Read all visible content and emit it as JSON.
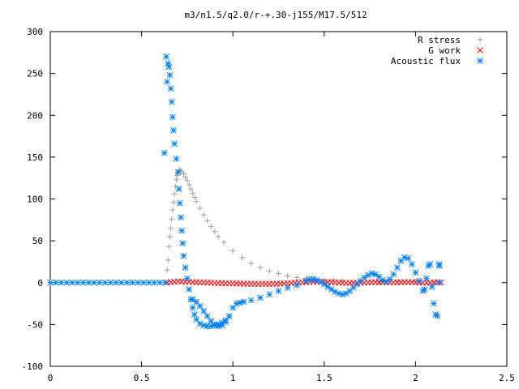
{
  "chart_data": {
    "type": "scatter",
    "title": "m3/n1.5/q2.0/r-+.30-j155/M17.5/512",
    "xlabel": "",
    "ylabel": "",
    "xlim": [
      0,
      2.5
    ],
    "ylim": [
      -100,
      300
    ],
    "xticks": [
      "0",
      "0.5",
      "1",
      "1.5",
      "2",
      "2.5"
    ],
    "yticks": [
      "-100",
      "-50",
      "0",
      "50",
      "100",
      "150",
      "200",
      "250",
      "300"
    ],
    "grid": false,
    "legend_position": "top-right",
    "series": [
      {
        "name": "R stress",
        "marker": "plus",
        "color": "#a0a0a0",
        "points": [
          [
            0.64,
            15
          ],
          [
            0.645,
            27
          ],
          [
            0.65,
            43
          ],
          [
            0.655,
            55
          ],
          [
            0.66,
            65
          ],
          [
            0.665,
            76
          ],
          [
            0.67,
            87
          ],
          [
            0.675,
            96
          ],
          [
            0.68,
            106
          ],
          [
            0.685,
            115
          ],
          [
            0.69,
            123
          ],
          [
            0.695,
            128
          ],
          [
            0.7,
            132
          ],
          [
            0.705,
            134
          ],
          [
            0.71,
            135
          ],
          [
            0.72,
            133
          ],
          [
            0.73,
            130
          ],
          [
            0.74,
            126
          ],
          [
            0.75,
            122
          ],
          [
            0.76,
            117
          ],
          [
            0.77,
            112
          ],
          [
            0.78,
            107
          ],
          [
            0.79,
            102
          ],
          [
            0.8,
            97
          ],
          [
            0.82,
            89
          ],
          [
            0.84,
            81
          ],
          [
            0.86,
            74
          ],
          [
            0.88,
            67
          ],
          [
            0.9,
            61
          ],
          [
            0.92,
            55
          ],
          [
            0.95,
            48
          ],
          [
            1.0,
            38
          ],
          [
            1.05,
            30
          ],
          [
            1.1,
            23
          ],
          [
            1.15,
            18
          ],
          [
            1.2,
            14
          ],
          [
            1.25,
            11
          ],
          [
            1.3,
            8
          ],
          [
            1.35,
            6
          ],
          [
            1.4,
            5
          ],
          [
            1.45,
            4
          ],
          [
            1.5,
            3
          ],
          [
            1.55,
            3
          ],
          [
            1.6,
            2
          ],
          [
            1.7,
            2
          ],
          [
            1.8,
            1
          ],
          [
            1.9,
            1
          ],
          [
            2.0,
            1
          ],
          [
            2.1,
            0.5
          ]
        ]
      },
      {
        "name": "G work",
        "marker": "cross",
        "color": "#ff0000",
        "points": [
          [
            0.64,
            0
          ],
          [
            0.66,
            0.5
          ],
          [
            0.68,
            1
          ],
          [
            0.7,
            1.5
          ],
          [
            0.72,
            1.2
          ],
          [
            0.74,
            1
          ],
          [
            0.76,
            0.8
          ],
          [
            0.78,
            0.6
          ],
          [
            0.8,
            0.5
          ],
          [
            0.82,
            0.3
          ],
          [
            0.84,
            0.2
          ],
          [
            0.86,
            0
          ],
          [
            0.88,
            -0.2
          ],
          [
            0.9,
            -0.3
          ],
          [
            0.92,
            -0.5
          ],
          [
            0.94,
            -0.6
          ],
          [
            0.96,
            -0.7
          ],
          [
            0.98,
            -0.8
          ],
          [
            1.0,
            -0.9
          ],
          [
            1.02,
            -1
          ],
          [
            1.04,
            -1.1
          ],
          [
            1.06,
            -1.2
          ],
          [
            1.08,
            -1.3
          ],
          [
            1.1,
            -1.4
          ],
          [
            1.12,
            -1.4
          ],
          [
            1.14,
            -1.5
          ],
          [
            1.16,
            -1.5
          ],
          [
            1.18,
            -1.5
          ],
          [
            1.2,
            -1.5
          ],
          [
            1.22,
            -1.4
          ],
          [
            1.24,
            -1.3
          ],
          [
            1.26,
            -1.2
          ],
          [
            1.28,
            -1
          ],
          [
            1.3,
            -0.8
          ],
          [
            1.32,
            -0.5
          ],
          [
            1.34,
            -0.2
          ],
          [
            1.36,
            0
          ],
          [
            1.38,
            0.3
          ],
          [
            1.4,
            0.6
          ],
          [
            1.42,
            0.8
          ],
          [
            1.44,
            1
          ],
          [
            1.46,
            1
          ],
          [
            1.48,
            0.9
          ],
          [
            1.5,
            0.8
          ],
          [
            1.52,
            0.6
          ],
          [
            1.54,
            0.4
          ],
          [
            1.56,
            0.2
          ],
          [
            1.58,
            0
          ],
          [
            1.6,
            -0.2
          ],
          [
            1.62,
            -0.3
          ],
          [
            1.64,
            -0.4
          ],
          [
            1.66,
            -0.4
          ],
          [
            1.68,
            -0.3
          ],
          [
            1.7,
            -0.2
          ],
          [
            1.72,
            0
          ],
          [
            1.74,
            0.2
          ],
          [
            1.76,
            0.4
          ],
          [
            1.78,
            0.5
          ],
          [
            1.8,
            0.5
          ],
          [
            1.82,
            0.4
          ],
          [
            1.84,
            0.3
          ],
          [
            1.86,
            0.2
          ],
          [
            1.88,
            0.2
          ],
          [
            1.9,
            0.3
          ],
          [
            1.92,
            0.5
          ],
          [
            1.94,
            0.6
          ],
          [
            1.96,
            0.6
          ],
          [
            1.98,
            0.5
          ],
          [
            2.0,
            0.3
          ],
          [
            2.02,
            0.1
          ],
          [
            2.04,
            0
          ],
          [
            2.06,
            -0.1
          ],
          [
            2.08,
            0
          ],
          [
            2.1,
            0.2
          ],
          [
            2.12,
            0.3
          ],
          [
            2.14,
            0.2
          ]
        ]
      },
      {
        "name": "Acoustic flux",
        "marker": "star",
        "color": "#0080ff",
        "points": [
          [
            0.0,
            0
          ],
          [
            0.03,
            0
          ],
          [
            0.06,
            0
          ],
          [
            0.09,
            0
          ],
          [
            0.12,
            0
          ],
          [
            0.15,
            0
          ],
          [
            0.18,
            0
          ],
          [
            0.21,
            0
          ],
          [
            0.24,
            0
          ],
          [
            0.27,
            0
          ],
          [
            0.3,
            0
          ],
          [
            0.33,
            0
          ],
          [
            0.36,
            0
          ],
          [
            0.39,
            0
          ],
          [
            0.42,
            0
          ],
          [
            0.45,
            0
          ],
          [
            0.48,
            0
          ],
          [
            0.51,
            0
          ],
          [
            0.54,
            0
          ],
          [
            0.57,
            0
          ],
          [
            0.6,
            0
          ],
          [
            0.63,
            0
          ],
          [
            0.625,
            155
          ],
          [
            0.635,
            270
          ],
          [
            0.64,
            240
          ],
          [
            0.645,
            262
          ],
          [
            0.65,
            258
          ],
          [
            0.655,
            248
          ],
          [
            0.66,
            232
          ],
          [
            0.665,
            216
          ],
          [
            0.67,
            198
          ],
          [
            0.675,
            182
          ],
          [
            0.68,
            166
          ],
          [
            0.69,
            148
          ],
          [
            0.7,
            132
          ],
          [
            0.705,
            112
          ],
          [
            0.71,
            95
          ],
          [
            0.715,
            78
          ],
          [
            0.72,
            62
          ],
          [
            0.725,
            47
          ],
          [
            0.73,
            32
          ],
          [
            0.74,
            18
          ],
          [
            0.75,
            5
          ],
          [
            0.76,
            -8
          ],
          [
            0.77,
            -20
          ],
          [
            0.78,
            -30
          ],
          [
            0.79,
            -38
          ],
          [
            0.8,
            -44
          ],
          [
            0.82,
            -49
          ],
          [
            0.84,
            -51
          ],
          [
            0.86,
            -52
          ],
          [
            0.88,
            -52
          ],
          [
            0.9,
            -51
          ],
          [
            0.92,
            -50
          ],
          [
            0.94,
            -48
          ],
          [
            0.96,
            -45
          ],
          [
            0.98,
            -40
          ],
          [
            1.0,
            -30
          ],
          [
            1.02,
            -25
          ],
          [
            1.04,
            -24
          ],
          [
            0.78,
            -20
          ],
          [
            0.8,
            -23
          ],
          [
            0.82,
            -28
          ],
          [
            0.84,
            -34
          ],
          [
            0.86,
            -40
          ],
          [
            0.88,
            -46
          ],
          [
            0.9,
            -50
          ],
          [
            0.92,
            -52
          ],
          [
            0.94,
            -51
          ],
          [
            0.96,
            -47
          ],
          [
            0.98,
            -40
          ],
          [
            1.06,
            -23
          ],
          [
            1.1,
            -21
          ],
          [
            1.15,
            -18
          ],
          [
            1.2,
            -14
          ],
          [
            1.25,
            -10
          ],
          [
            1.3,
            -6
          ],
          [
            1.35,
            -3
          ],
          [
            1.4,
            2
          ],
          [
            1.42,
            4
          ],
          [
            1.44,
            4
          ],
          [
            1.46,
            3
          ],
          [
            1.48,
            1
          ],
          [
            1.5,
            -2
          ],
          [
            1.52,
            -5
          ],
          [
            1.54,
            -8
          ],
          [
            1.56,
            -11
          ],
          [
            1.58,
            -13
          ],
          [
            1.6,
            -14
          ],
          [
            1.62,
            -13
          ],
          [
            1.64,
            -10
          ],
          [
            1.66,
            -6
          ],
          [
            1.68,
            -2
          ],
          [
            1.7,
            2
          ],
          [
            1.72,
            6
          ],
          [
            1.74,
            9
          ],
          [
            1.76,
            11
          ],
          [
            1.78,
            10
          ],
          [
            1.8,
            7
          ],
          [
            1.82,
            3
          ],
          [
            1.84,
            1
          ],
          [
            1.86,
            4
          ],
          [
            1.88,
            10
          ],
          [
            1.9,
            18
          ],
          [
            1.92,
            26
          ],
          [
            1.94,
            30
          ],
          [
            1.96,
            29
          ],
          [
            1.98,
            22
          ],
          [
            2.0,
            12
          ],
          [
            2.02,
            2
          ],
          [
            2.04,
            -10
          ],
          [
            2.05,
            -8
          ],
          [
            2.06,
            5
          ],
          [
            2.07,
            20
          ],
          [
            2.08,
            22
          ],
          [
            2.09,
            -5
          ],
          [
            2.1,
            -25
          ],
          [
            2.11,
            -38
          ],
          [
            2.12,
            -40
          ],
          [
            2.13,
            22
          ],
          [
            2.13,
            0
          ],
          [
            2.13,
            20
          ]
        ]
      }
    ]
  }
}
